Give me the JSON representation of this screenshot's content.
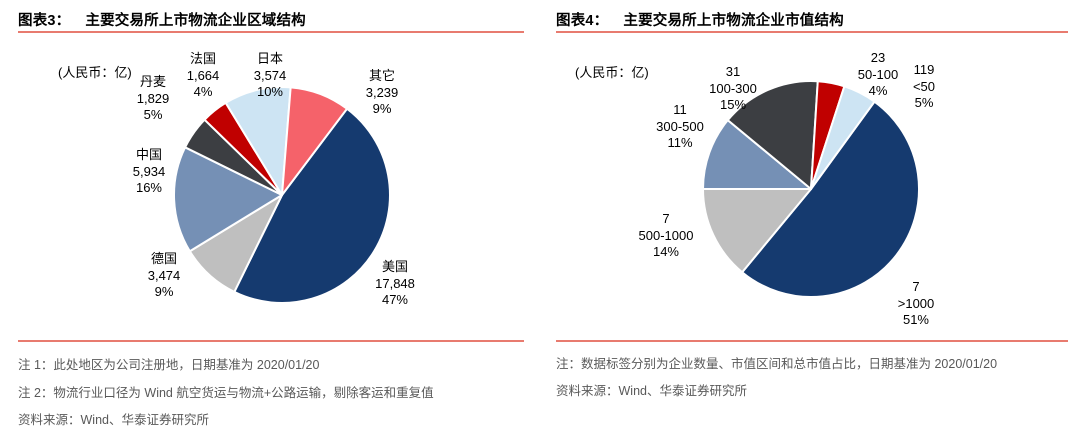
{
  "colors": {
    "accent_line": "#E87B6F",
    "navy": "#153A6F",
    "light_gray": "#BFBFBF",
    "steel_blue": "#7590B5",
    "charcoal": "#3C3E42",
    "dark_red": "#C00000",
    "light_blue": "#CDE4F3",
    "salmon": "#F5626A",
    "note_text": "#595959"
  },
  "panels": [
    {
      "fig_no": "图表3：",
      "title": "主要交易所上市物流企业区域结构",
      "unit": "(人民币：亿)",
      "notes": [
        "注 1：此处地区为公司注册地，日期基准为 2020/01/20",
        "注 2：物流行业口径为 Wind 航空货运与物流+公路运输，剔除客运和重复值"
      ],
      "source": "资料来源：Wind、华泰证券研究所"
    },
    {
      "fig_no": "图表4：",
      "title": "主要交易所上市物流企业市值结构",
      "unit": "(人民币：亿)",
      "notes": [
        "注：数据标签分别为企业数量、市值区间和总市值占比，日期基准为 2020/01/20"
      ],
      "source": "资料来源：Wind、华泰证券研究所"
    }
  ],
  "chart_data": [
    {
      "type": "pie",
      "title": "主要交易所上市物流企业区域结构",
      "unit": "人民币：亿",
      "legend_position": "none",
      "start_angle_deg": 37,
      "slices": [
        {
          "label": "美国",
          "value": 17848,
          "pct": 47,
          "color": "#153A6F",
          "label_lines": [
            "美国",
            "17,848",
            "47%"
          ]
        },
        {
          "label": "德国",
          "value": 3474,
          "pct": 9,
          "color": "#BFBFBF",
          "label_lines": [
            "德国",
            "3,474",
            "9%"
          ]
        },
        {
          "label": "中国",
          "value": 5934,
          "pct": 16,
          "color": "#7590B5",
          "label_lines": [
            "中国",
            "5,934",
            "16%"
          ]
        },
        {
          "label": "丹麦",
          "value": 1829,
          "pct": 5,
          "color": "#3C3E42",
          "label_lines": [
            "丹麦",
            "1,829",
            "5%"
          ]
        },
        {
          "label": "法国",
          "value": 1664,
          "pct": 4,
          "color": "#C00000",
          "label_lines": [
            "法国",
            "1,664",
            "4%"
          ]
        },
        {
          "label": "日本",
          "value": 3574,
          "pct": 10,
          "color": "#CDE4F3",
          "label_lines": [
            "日本",
            "3,574",
            "10%"
          ]
        },
        {
          "label": "其它",
          "value": 3239,
          "pct": 9,
          "color": "#F5626A",
          "label_lines": [
            "其它",
            "3,239",
            "9%"
          ]
        }
      ]
    },
    {
      "type": "pie",
      "title": "主要交易所上市物流企业市值结构",
      "unit": "人民币：亿",
      "legend_position": "none",
      "start_angle_deg": 36,
      "slices": [
        {
          "label": ">1000",
          "count": 7,
          "pct": 51,
          "color": "#153A6F",
          "label_lines": [
            "7",
            ">1000",
            "51%"
          ]
        },
        {
          "label": "500-1000",
          "count": 7,
          "pct": 14,
          "color": "#BFBFBF",
          "label_lines": [
            "7",
            "500-1000",
            "14%"
          ]
        },
        {
          "label": "300-500",
          "count": 11,
          "pct": 11,
          "color": "#7590B5",
          "label_lines": [
            "11",
            "300-500",
            "11%"
          ]
        },
        {
          "label": "100-300",
          "count": 31,
          "pct": 15,
          "color": "#3C3E42",
          "label_lines": [
            "31",
            "100-300",
            "15%"
          ]
        },
        {
          "label": "50-100",
          "count": 23,
          "pct": 4,
          "color": "#C00000",
          "label_lines": [
            "23",
            "50-100",
            "4%"
          ]
        },
        {
          "label": "<50",
          "count": 119,
          "pct": 5,
          "color": "#CDE4F3",
          "label_lines": [
            "119",
            "<50",
            "5%"
          ]
        }
      ]
    }
  ]
}
